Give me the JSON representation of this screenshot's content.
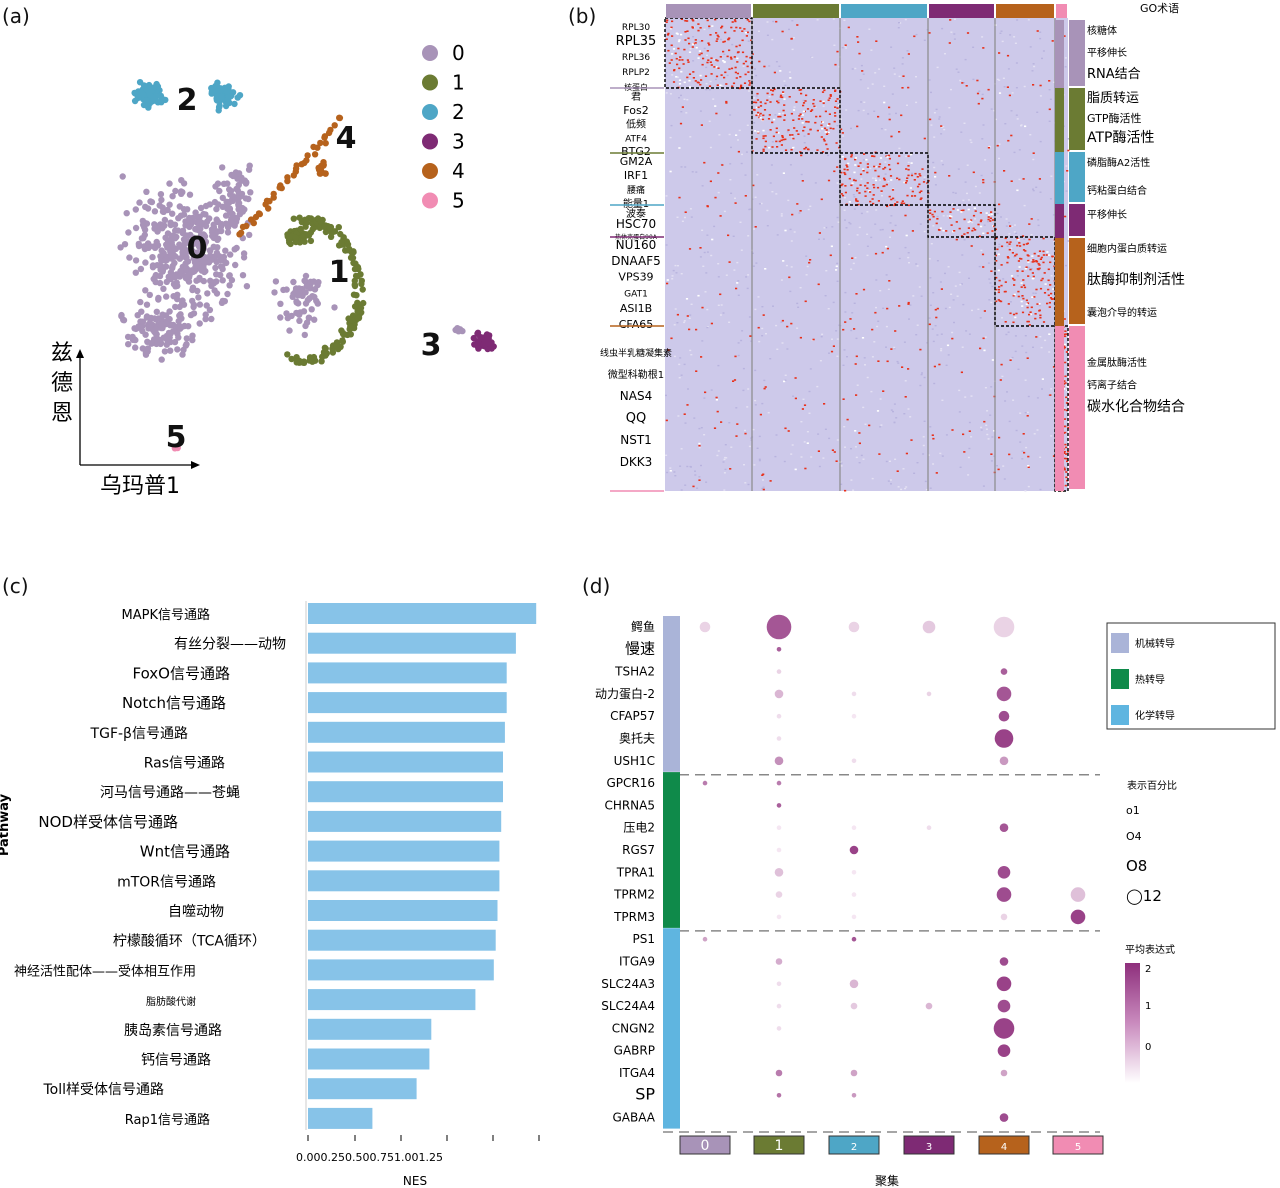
{
  "panels": {
    "a": "(a)",
    "b": "(b)",
    "c": "(c)",
    "d": "(d)"
  },
  "colors": {
    "c0": "#a893b8",
    "c1": "#6b7b33",
    "c2": "#4ea6c6",
    "c3": "#7e2a74",
    "c4": "#b6621c",
    "c5": "#f18cb3",
    "bar": "#87c3e8",
    "heat_bg": "#cdc9ea",
    "heat_hi": "#e8301a",
    "dot": "#8e2f7c",
    "mech": "#aab4d8",
    "thermo": "#0f8a4a",
    "chemo": "#5fb5e0"
  },
  "panel_a": {
    "chart_data": {
      "type": "scatter",
      "xlabel": "乌玛普1",
      "ylabel": "兹德恩",
      "legend": [
        "0",
        "1",
        "2",
        "3",
        "4",
        "5"
      ],
      "cluster_labels": [
        "0",
        "1",
        "2",
        "3",
        "4",
        "5"
      ]
    }
  },
  "panel_b": {
    "chart_data": {
      "type": "heatmap",
      "legend_title": "GO术语",
      "clusters": [
        "0",
        "1",
        "2",
        "3",
        "4",
        "5"
      ],
      "gene_groups": [
        [
          "RPL30",
          "RPL35",
          "RPL36",
          "RPLP2",
          "核蛋白"
        ],
        [
          "君",
          "Fos2",
          "低频",
          "ATF4",
          "BTG2"
        ],
        [
          "GM2A",
          "IRF1",
          "腰痛",
          "能量1"
        ],
        [
          "波泰",
          "HSC70",
          "热休克蛋白90A"
        ],
        [
          "NU160",
          "DNAAF5",
          "VPS39",
          "GAT1",
          "ASI1B",
          "CFA65"
        ],
        [
          "线虫半乳糖凝集素",
          "微型科勒根1",
          "NAS4",
          "QQ",
          "NST1",
          "DKK3"
        ]
      ],
      "go_terms": [
        [
          "核糖体",
          "平移伸长",
          "RNA结合"
        ],
        [
          "脂质转运",
          "GTP酶活性",
          "ATP酶活性"
        ],
        [
          "磷脂酶A2活性",
          "钙粘蛋白结合"
        ],
        [
          "平移伸长"
        ],
        [
          "细胞内蛋白质转运",
          "肽酶抑制剂活性",
          "囊泡介导的转运"
        ],
        [
          "金属肽酶活性",
          "钙离子结合",
          "碳水化合物结合"
        ]
      ]
    }
  },
  "panel_c": {
    "chart_data": {
      "type": "bar",
      "orientation": "horizontal",
      "ylabel": "Pathway",
      "xlabel": "NES",
      "xticks": [
        "0.00",
        "0.25",
        "0.50",
        "0.75",
        "1.00",
        "1.25"
      ],
      "xlim": [
        0,
        1.25
      ],
      "categories": [
        "MAPK信号通路",
        "有丝分裂——动物",
        "FoxO信号通路",
        "Notch信号通路",
        "TGF-β信号通路",
        "Ras信号通路",
        "河马信号通路——苍蝇",
        "NOD样受体信号通路",
        "Wnt信号通路",
        "mTOR信号通路",
        "自噬动物",
        "柠檬酸循环（TCA循环）",
        "神经活性配体——受体相互作用",
        "脂肪酸代谢",
        "胰岛素信号通路",
        "钙信号通路",
        "Toll样受体信号通路",
        "Rap1信号通路"
      ],
      "values": [
        1.24,
        1.13,
        1.08,
        1.08,
        1.07,
        1.06,
        1.06,
        1.05,
        1.04,
        1.04,
        1.03,
        1.02,
        1.01,
        0.91,
        0.67,
        0.66,
        0.59,
        0.35
      ]
    }
  },
  "panel_d": {
    "chart_data": {
      "type": "scatter",
      "subtype": "dotplot",
      "xlabel": "聚集",
      "clusters": [
        "0",
        "1",
        "2",
        "3",
        "4",
        "5"
      ],
      "genes": [
        "鳄鱼",
        "慢速",
        "TSHA2",
        "动力蛋白-2",
        "CFAP57",
        "奥托夫",
        "USH1C",
        "GPCR16",
        "CHRNA5",
        "压电2",
        "RGS7",
        "TPRA1",
        "TPRM2",
        "TPRM3",
        "PS1",
        "ITGA9",
        "SLC24A3",
        "SLC24A4",
        "CNGN2",
        "GABRP",
        "ITGA4",
        "SP",
        "GABAA"
      ],
      "groups": [
        {
          "name": "机械转导",
          "genes": 7
        },
        {
          "name": "热转导",
          "genes": 7
        },
        {
          "name": "化学转导",
          "genes": 9
        }
      ],
      "pct_sizes": [
        [
          4,
          11,
          4,
          5,
          9,
          0
        ],
        [
          0,
          1,
          0,
          0,
          0,
          0
        ],
        [
          0,
          1,
          0,
          0,
          2,
          0
        ],
        [
          0,
          3,
          1,
          1,
          6,
          0
        ],
        [
          0,
          1,
          1,
          0,
          4,
          0
        ],
        [
          0,
          1,
          0,
          0,
          8,
          0
        ],
        [
          0,
          3,
          1,
          0,
          3,
          0
        ],
        [
          1,
          1,
          0,
          0,
          0,
          0
        ],
        [
          0,
          1,
          0,
          0,
          0,
          0
        ],
        [
          0,
          1,
          1,
          1,
          3,
          0
        ],
        [
          0,
          1,
          3,
          0,
          0,
          0
        ],
        [
          0,
          3,
          1,
          0,
          5,
          0
        ],
        [
          0,
          2,
          1,
          0,
          6,
          6
        ],
        [
          0,
          1,
          1,
          0,
          2,
          6
        ],
        [
          1,
          0,
          1,
          0,
          0,
          0
        ],
        [
          0,
          2,
          0,
          0,
          3,
          0
        ],
        [
          0,
          1,
          3,
          0,
          6,
          0
        ],
        [
          0,
          1,
          2,
          2,
          5,
          0
        ],
        [
          0,
          1,
          0,
          0,
          9,
          0
        ],
        [
          0,
          0,
          0,
          0,
          5,
          0
        ],
        [
          0,
          2,
          2,
          0,
          2,
          0
        ],
        [
          0,
          1,
          1,
          0,
          0,
          0
        ],
        [
          0,
          0,
          0,
          0,
          3,
          0
        ]
      ],
      "avg_expr": [
        [
          0.3,
          1.6,
          0.3,
          0.4,
          0.3,
          0
        ],
        [
          0,
          1.5,
          0,
          0,
          0,
          0
        ],
        [
          0,
          0.3,
          0,
          0,
          1.5,
          0
        ],
        [
          0,
          0.6,
          0.2,
          0.3,
          1.6,
          0
        ],
        [
          0,
          0.2,
          0.1,
          0,
          1.7,
          0
        ],
        [
          0,
          0.2,
          0,
          0,
          1.8,
          0
        ],
        [
          0,
          1.0,
          0.2,
          0,
          0.9,
          0
        ],
        [
          1.2,
          1.2,
          0,
          0,
          0,
          0
        ],
        [
          0,
          1.5,
          0,
          0,
          0,
          0
        ],
        [
          0,
          0.1,
          0.1,
          0.2,
          1.6,
          0
        ],
        [
          0,
          0.1,
          1.8,
          0,
          0,
          0
        ],
        [
          0,
          0.5,
          0.1,
          0,
          1.7,
          0
        ],
        [
          0,
          0.3,
          0.1,
          0,
          1.7,
          0.5
        ],
        [
          0,
          0.1,
          0.1,
          0,
          0.3,
          1.8
        ],
        [
          0.8,
          0,
          1.6,
          0,
          0,
          0
        ],
        [
          0,
          0.7,
          0,
          0,
          1.7,
          0
        ],
        [
          0,
          0.2,
          0.6,
          0,
          1.8,
          0
        ],
        [
          0,
          0.2,
          0.4,
          0.6,
          1.7,
          0
        ],
        [
          0,
          0.2,
          0,
          0,
          1.8,
          0
        ],
        [
          0,
          0,
          0,
          0,
          1.8,
          0
        ],
        [
          0,
          1.2,
          0.8,
          0,
          0.8,
          0
        ],
        [
          0,
          1.3,
          0.9,
          0,
          0,
          0
        ],
        [
          0,
          0,
          0,
          0,
          1.7,
          0
        ]
      ],
      "legend_group_title": "",
      "pct_title": "表示百分比",
      "pct_legend": [
        "o1",
        "O4",
        "O8",
        "◯12"
      ],
      "avg_title": "平均表达式",
      "avg_ticks": [
        "2",
        "1",
        "0"
      ]
    }
  }
}
